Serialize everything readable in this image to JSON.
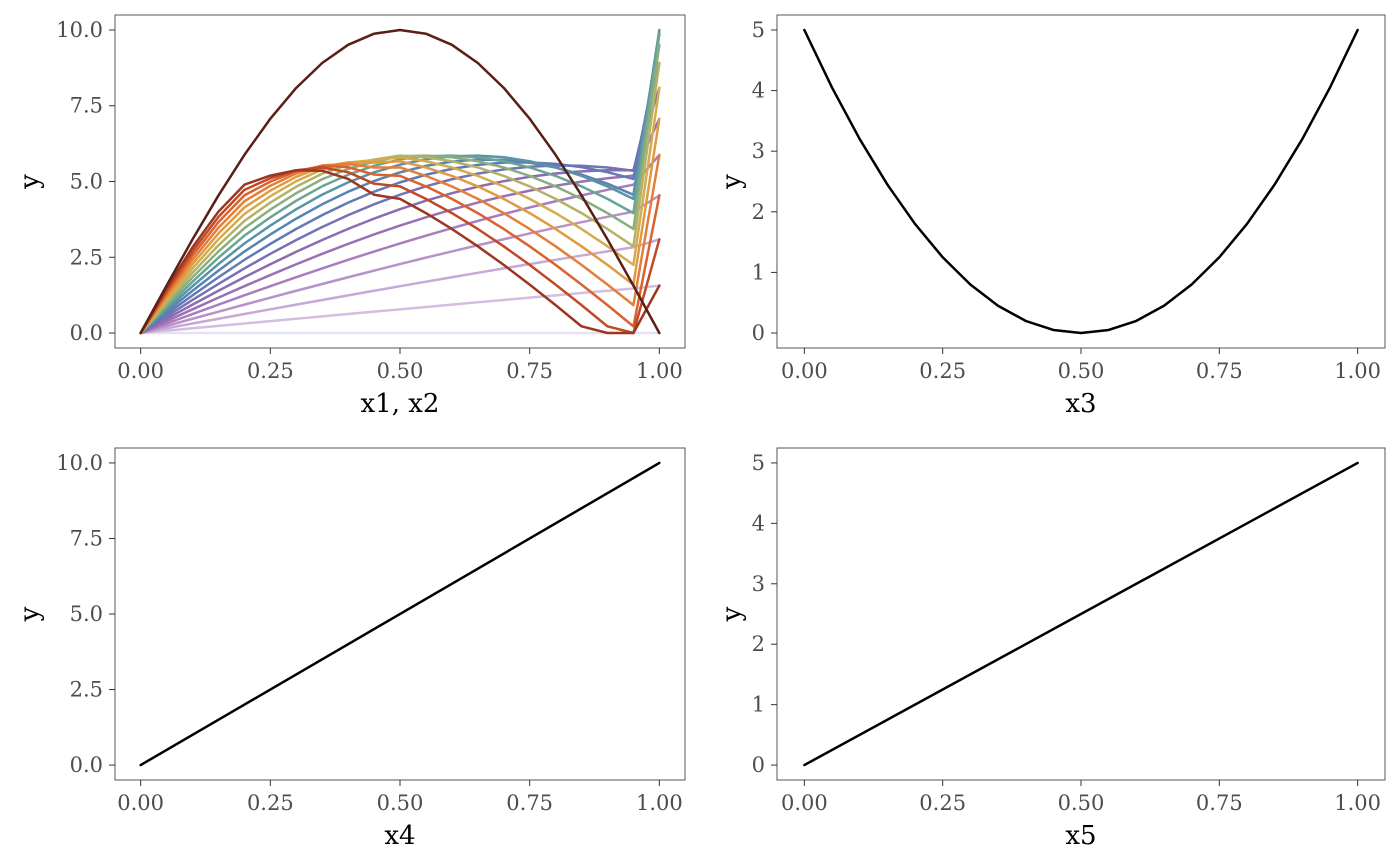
{
  "chart_data": [
    {
      "type": "line",
      "xlabel": "x1, x2",
      "ylabel": "y",
      "xlim": [
        0,
        1
      ],
      "ylim": [
        0,
        10
      ],
      "x_ticks": [
        0,
        0.25,
        0.5,
        0.75,
        1
      ],
      "x_tick_labels": [
        "0.00",
        "0.25",
        "0.50",
        "0.75",
        "1.00"
      ],
      "y_ticks": [
        0,
        2.5,
        5,
        7.5,
        10
      ],
      "y_tick_labels": [
        "0.0",
        "2.5",
        "5.0",
        "7.5",
        "10.0"
      ],
      "grid": false,
      "legend": "none",
      "x": [
        0,
        0.05,
        0.1,
        0.15,
        0.2,
        0.25,
        0.3,
        0.35,
        0.4,
        0.45,
        0.5,
        0.55,
        0.6,
        0.65,
        0.7,
        0.75,
        0.8,
        0.85,
        0.9,
        0.95,
        1.0
      ],
      "series": [
        {
          "color": "#e3e3f7",
          "values": [
            0,
            0,
            0,
            0,
            0,
            0,
            0,
            0,
            0,
            0,
            0,
            0,
            0,
            0,
            0,
            0,
            0,
            0,
            0,
            0,
            0
          ]
        },
        {
          "color": "#d3bde0",
          "values": [
            0,
            0.079,
            0.157,
            0.236,
            0.314,
            0.392,
            0.471,
            0.549,
            0.627,
            0.705,
            0.782,
            0.86,
            0.937,
            1.014,
            1.09,
            1.167,
            1.243,
            1.319,
            1.394,
            1.469,
            1.564
          ]
        },
        {
          "color": "#c7a8d6",
          "values": [
            0,
            0.157,
            0.314,
            0.471,
            0.627,
            0.782,
            0.937,
            1.09,
            1.243,
            1.394,
            1.545,
            1.694,
            1.841,
            1.987,
            2.132,
            2.275,
            2.416,
            2.556,
            2.693,
            2.829,
            3.09
          ]
        },
        {
          "color": "#b891c9",
          "values": [
            0,
            0.236,
            0.471,
            0.705,
            0.937,
            1.167,
            1.394,
            1.618,
            1.841,
            2.059,
            2.275,
            2.487,
            2.693,
            2.896,
            3.094,
            3.287,
            3.475,
            3.658,
            3.834,
            4.005,
            4.54
          ]
        },
        {
          "color": "#a97cbd",
          "values": [
            0,
            0.314,
            0.627,
            0.937,
            1.243,
            1.545,
            1.841,
            2.131,
            2.414,
            2.689,
            2.955,
            3.213,
            3.461,
            3.699,
            3.927,
            4.144,
            4.349,
            4.543,
            4.725,
            4.894,
            5.878
          ]
        },
        {
          "color": "#9a70b5",
          "values": [
            0,
            0.392,
            0.782,
            1.167,
            1.545,
            1.913,
            2.27,
            2.613,
            2.941,
            3.253,
            3.546,
            3.82,
            4.073,
            4.305,
            4.514,
            4.699,
            4.86,
            4.997,
            5.108,
            5.195,
            7.071
          ]
        },
        {
          "color": "#8a6cb0",
          "values": [
            0,
            0.471,
            0.937,
            1.394,
            1.841,
            2.27,
            2.681,
            3.07,
            3.436,
            3.775,
            4.086,
            4.367,
            4.615,
            4.83,
            5.01,
            5.155,
            5.264,
            5.336,
            5.372,
            5.372,
            8.09
          ]
        },
        {
          "color": "#7671b2",
          "values": [
            0,
            0.549,
            1.09,
            1.618,
            2.131,
            2.613,
            3.07,
            3.497,
            3.891,
            4.248,
            4.566,
            4.842,
            5.074,
            5.26,
            5.398,
            5.487,
            5.527,
            5.518,
            5.461,
            5.356,
            8.91
          ]
        },
        {
          "color": "#6279b5",
          "values": [
            0,
            0.627,
            1.243,
            1.841,
            2.414,
            2.941,
            3.436,
            3.891,
            4.302,
            4.663,
            4.971,
            5.223,
            5.416,
            5.549,
            5.621,
            5.632,
            5.583,
            5.474,
            5.307,
            5.085,
            9.511
          ]
        },
        {
          "color": "#5884b2",
          "values": [
            0,
            0.705,
            1.394,
            2.059,
            2.689,
            3.253,
            3.775,
            4.248,
            4.663,
            5.016,
            5.302,
            5.516,
            5.656,
            5.721,
            5.71,
            5.623,
            5.462,
            5.229,
            4.928,
            4.563,
            9.877
          ]
        },
        {
          "color": "#5a93a6",
          "values": [
            0,
            0.782,
            1.545,
            2.275,
            2.955,
            3.546,
            4.086,
            4.566,
            4.971,
            5.302,
            5.556,
            5.733,
            5.833,
            5.855,
            5.8,
            5.669,
            5.463,
            5.185,
            4.838,
            4.427,
            10.0
          ]
        },
        {
          "color": "#6aa494",
          "values": [
            0,
            0.86,
            1.694,
            2.487,
            3.213,
            3.82,
            4.367,
            4.842,
            5.223,
            5.516,
            5.733,
            5.833,
            5.855,
            5.8,
            5.669,
            5.463,
            5.185,
            4.838,
            4.427,
            3.957,
            9.877
          ]
        },
        {
          "color": "#8aae7e",
          "values": [
            0,
            0.937,
            1.841,
            2.693,
            3.461,
            4.073,
            4.615,
            5.074,
            5.416,
            5.656,
            5.833,
            5.855,
            5.8,
            5.669,
            5.463,
            5.185,
            4.838,
            4.427,
            3.957,
            3.433,
            9.511
          ]
        },
        {
          "color": "#b3b266",
          "values": [
            0,
            1.014,
            1.987,
            2.896,
            3.699,
            4.305,
            4.83,
            5.26,
            5.549,
            5.721,
            5.855,
            5.8,
            5.669,
            5.463,
            5.185,
            4.838,
            4.427,
            3.957,
            3.433,
            2.861,
            8.91
          ]
        },
        {
          "color": "#d4ac4f",
          "values": [
            0,
            1.09,
            2.132,
            3.094,
            3.927,
            4.514,
            5.01,
            5.398,
            5.621,
            5.71,
            5.8,
            5.669,
            5.463,
            5.185,
            4.838,
            4.427,
            3.957,
            3.433,
            2.861,
            2.247,
            8.09
          ]
        },
        {
          "color": "#e09a42",
          "values": [
            0,
            1.167,
            2.275,
            3.287,
            4.144,
            4.699,
            5.155,
            5.487,
            5.632,
            5.623,
            5.669,
            5.463,
            5.185,
            4.838,
            4.427,
            3.957,
            3.433,
            2.861,
            2.247,
            1.598,
            7.071
          ]
        },
        {
          "color": "#e37f39",
          "values": [
            0,
            1.243,
            2.416,
            3.475,
            4.349,
            4.86,
            5.264,
            5.527,
            5.583,
            5.462,
            5.463,
            5.185,
            4.838,
            4.427,
            3.957,
            3.433,
            2.861,
            2.247,
            1.598,
            0.92,
            5.878
          ]
        },
        {
          "color": "#d9622f",
          "values": [
            0,
            1.319,
            2.556,
            3.658,
            4.543,
            4.997,
            5.336,
            5.518,
            5.474,
            5.229,
            5.185,
            4.838,
            4.427,
            3.957,
            3.433,
            2.861,
            2.247,
            1.598,
            0.92,
            0.22,
            4.54
          ]
        },
        {
          "color": "#c04a26",
          "values": [
            0,
            1.394,
            2.693,
            3.834,
            4.725,
            5.108,
            5.372,
            5.461,
            5.307,
            4.928,
            4.838,
            4.427,
            3.957,
            3.433,
            2.861,
            2.247,
            1.598,
            0.92,
            0.22,
            0.0,
            3.09
          ]
        },
        {
          "color": "#9b3720",
          "values": [
            0,
            1.469,
            2.829,
            4.005,
            4.894,
            5.195,
            5.372,
            5.356,
            5.085,
            4.563,
            4.427,
            3.957,
            3.433,
            2.861,
            2.247,
            1.598,
            0.92,
            0.22,
            0.0,
            0.0,
            1.564
          ]
        },
        {
          "color": "#5a1f16",
          "values": [
            0,
            1.564,
            3.09,
            4.54,
            5.878,
            7.071,
            8.09,
            8.91,
            9.511,
            9.877,
            10.0,
            9.877,
            9.511,
            8.91,
            8.09,
            7.071,
            5.878,
            4.54,
            3.09,
            1.564,
            0
          ]
        }
      ]
    },
    {
      "type": "line",
      "xlabel": "x3",
      "ylabel": "y",
      "xlim": [
        0,
        1
      ],
      "ylim": [
        0,
        5
      ],
      "x_ticks": [
        0,
        0.25,
        0.5,
        0.75,
        1
      ],
      "x_tick_labels": [
        "0.00",
        "0.25",
        "0.50",
        "0.75",
        "1.00"
      ],
      "y_ticks": [
        0,
        1,
        2,
        3,
        4,
        5
      ],
      "y_tick_labels": [
        "0",
        "1",
        "2",
        "3",
        "4",
        "5"
      ],
      "grid": false,
      "legend": "none",
      "x": [
        0,
        0.05,
        0.1,
        0.15,
        0.2,
        0.25,
        0.3,
        0.35,
        0.4,
        0.45,
        0.5,
        0.55,
        0.6,
        0.65,
        0.7,
        0.75,
        0.8,
        0.85,
        0.9,
        0.95,
        1.0
      ],
      "series": [
        {
          "color": "#000000",
          "values": [
            5.0,
            4.05,
            3.2,
            2.45,
            1.8,
            1.25,
            0.8,
            0.45,
            0.2,
            0.05,
            0.0,
            0.05,
            0.2,
            0.45,
            0.8,
            1.25,
            1.8,
            2.45,
            3.2,
            4.05,
            5.0
          ]
        }
      ]
    },
    {
      "type": "line",
      "xlabel": "x4",
      "ylabel": "y",
      "xlim": [
        0,
        1
      ],
      "ylim": [
        0,
        10
      ],
      "x_ticks": [
        0,
        0.25,
        0.5,
        0.75,
        1
      ],
      "x_tick_labels": [
        "0.00",
        "0.25",
        "0.50",
        "0.75",
        "1.00"
      ],
      "y_ticks": [
        0,
        2.5,
        5,
        7.5,
        10
      ],
      "y_tick_labels": [
        "0.0",
        "2.5",
        "5.0",
        "7.5",
        "10.0"
      ],
      "grid": false,
      "legend": "none",
      "x": [
        0,
        1
      ],
      "series": [
        {
          "color": "#000000",
          "values": [
            0,
            10
          ]
        }
      ]
    },
    {
      "type": "line",
      "xlabel": "x5",
      "ylabel": "y",
      "xlim": [
        0,
        1
      ],
      "ylim": [
        0,
        5
      ],
      "x_ticks": [
        0,
        0.25,
        0.5,
        0.75,
        1
      ],
      "x_tick_labels": [
        "0.00",
        "0.25",
        "0.50",
        "0.75",
        "1.00"
      ],
      "y_ticks": [
        0,
        1,
        2,
        3,
        4,
        5
      ],
      "y_tick_labels": [
        "0",
        "1",
        "2",
        "3",
        "4",
        "5"
      ],
      "grid": false,
      "legend": "none",
      "x": [
        0,
        1
      ],
      "series": [
        {
          "color": "#000000",
          "values": [
            0,
            5
          ]
        }
      ]
    }
  ]
}
